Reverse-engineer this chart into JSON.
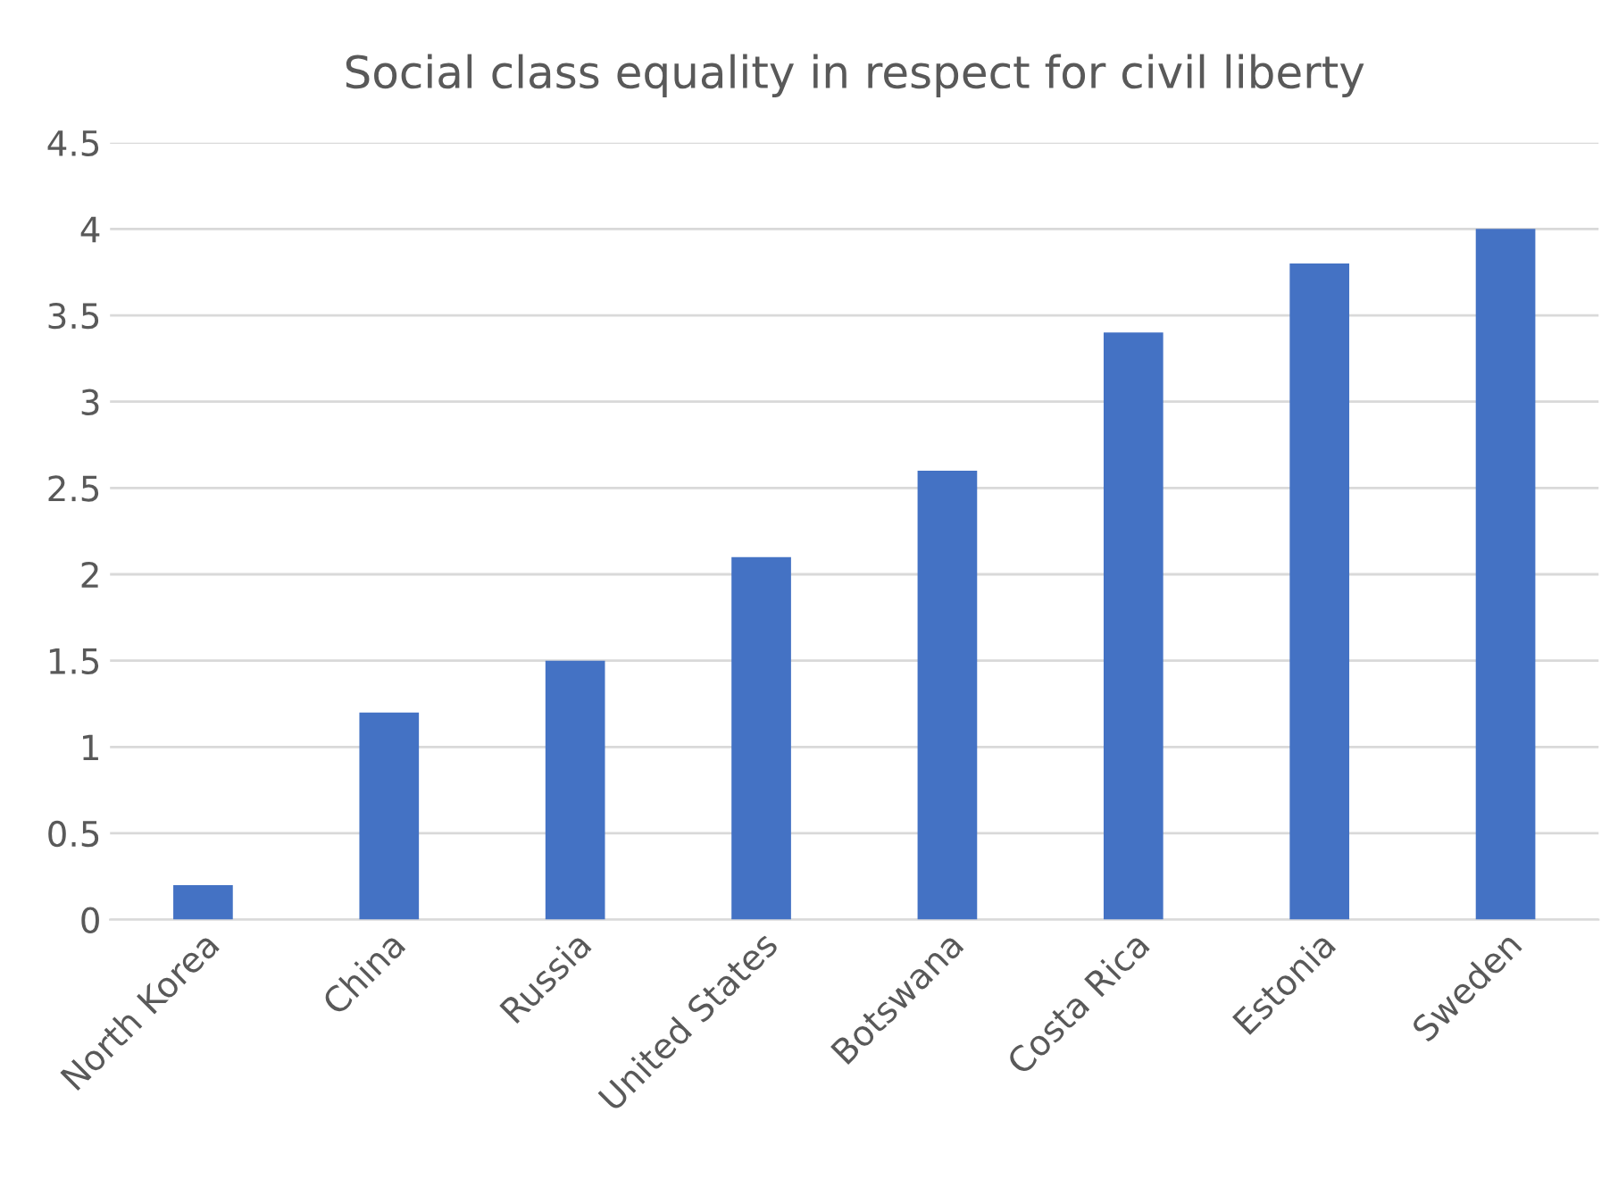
{
  "chart_data": {
    "type": "bar",
    "title": "Social class equality in respect for civil liberty",
    "categories": [
      "North Korea",
      "China",
      "Russia",
      "United States",
      "Botswana",
      "Costa Rica",
      "Estonia",
      "Sweden"
    ],
    "values": [
      0.2,
      1.2,
      1.5,
      2.1,
      2.6,
      3.4,
      3.8,
      4.0
    ],
    "color": "#4472c4",
    "ylim": [
      0,
      4.5
    ],
    "yticks": [
      0,
      {
        "value": 0.5,
        "label": "0.5"
      },
      1,
      {
        "value": 1.5,
        "label": "1.5"
      },
      2,
      {
        "value": 2.5,
        "label": "2.5"
      },
      3,
      {
        "value": 3.5,
        "label": "3.5"
      },
      4,
      {
        "value": 4.5,
        "label": "4.5"
      }
    ],
    "grid": "y"
  }
}
